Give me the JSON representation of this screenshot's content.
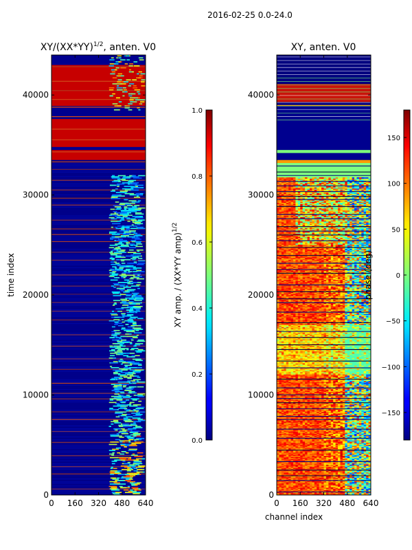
{
  "figure_title": "2016-02-25 0.0-24.0",
  "chart_data": [
    {
      "type": "heatmap",
      "title_prefix": "XY/(XX*YY)",
      "title_exp": "1/2",
      "title_suffix": ", anten. V0",
      "xlabel": "",
      "ylabel": "time index",
      "xlim": [
        0,
        640
      ],
      "ylim": [
        0,
        44000
      ],
      "xticks": [
        0,
        160,
        320,
        480,
        640
      ],
      "yticks": [
        0,
        10000,
        20000,
        30000,
        40000
      ],
      "colormap": "jet",
      "bands": [
        {
          "y0": 34800,
          "y1": 37600,
          "value": 1.0
        },
        {
          "y0": 38900,
          "y1": 43000,
          "value": 1.0
        },
        {
          "y0": 33500,
          "y1": 34500,
          "value": 1.0
        }
      ],
      "colorbar": {
        "label_prefix": "XY amp. / (XX*YY amp)",
        "label_exp": "1/2",
        "range": [
          0.0,
          1.0
        ],
        "ticks": [
          "0.0",
          "0.2",
          "0.4",
          "0.6",
          "0.8",
          "1.0"
        ]
      }
    },
    {
      "type": "heatmap",
      "title": "XY, anten. V0",
      "xlabel": "channel index",
      "ylabel": "",
      "xlim": [
        0,
        640
      ],
      "ylim": [
        0,
        44000
      ],
      "xticks": [
        0,
        160,
        320,
        480,
        640
      ],
      "yticks": [
        0,
        10000,
        20000,
        30000,
        40000
      ],
      "colormap": "jet",
      "colorbar": {
        "label": "phase (deg)",
        "range": [
          -180,
          180
        ],
        "ticks": [
          "−150",
          "−100",
          "−50",
          "0",
          "50",
          "100",
          "150"
        ]
      }
    }
  ]
}
